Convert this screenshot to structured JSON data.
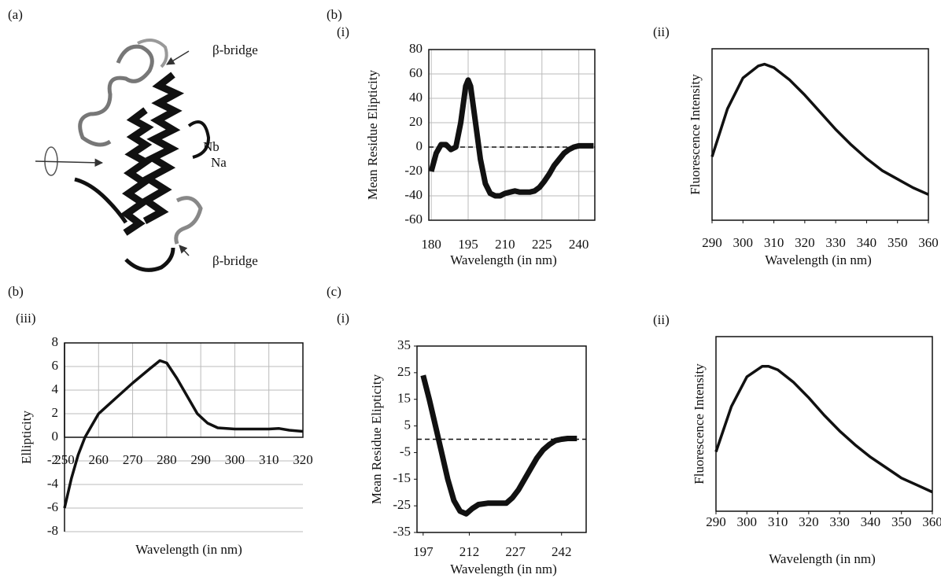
{
  "labels": [
    "(a)",
    "(b)",
    "(i)",
    "(ii)",
    "(b)",
    "(iii)",
    "(c)",
    "(i)",
    "(ii)"
  ],
  "structure": {
    "labels": [
      "β-bridge",
      "Nb",
      "Na",
      "β-bridge"
    ]
  },
  "chart_data": [
    {
      "type": "line",
      "xlabel": "Wavelength (in nm)",
      "ylabel": "Mean Residue Elipticity",
      "x": [
        180,
        182,
        184,
        186,
        188,
        190,
        192,
        194,
        195,
        196,
        198,
        200,
        202,
        204,
        206,
        208,
        210,
        212,
        214,
        216,
        218,
        220,
        222,
        224,
        226,
        228,
        230,
        232,
        234,
        236,
        238,
        240,
        242,
        244,
        246
      ],
      "values": [
        -20,
        -5,
        2,
        2,
        -2,
        0,
        20,
        50,
        55,
        50,
        20,
        -10,
        -30,
        -38,
        -40,
        -40,
        -38,
        -37,
        -36,
        -37,
        -37,
        -37,
        -36,
        -33,
        -28,
        -22,
        -15,
        -10,
        -5,
        -2,
        0,
        1,
        1,
        1,
        1
      ],
      "xlim": [
        179,
        246.5
      ],
      "ylim": [
        -60,
        80
      ],
      "xticks": [
        180,
        195,
        210,
        225,
        240
      ],
      "yticks": [
        -60,
        -40,
        -20,
        0,
        20,
        40,
        60,
        80
      ],
      "grid": true,
      "reference_line": 0,
      "color": "#111",
      "marker": "square"
    },
    {
      "type": "line",
      "xlabel": "Wavelength (in nm)",
      "ylabel": "Fluorescence Intensity",
      "x": [
        290,
        295,
        300,
        305,
        307,
        310,
        315,
        320,
        325,
        330,
        335,
        340,
        345,
        350,
        355,
        360
      ],
      "values": [
        37,
        65,
        83,
        90,
        91,
        89,
        82,
        73,
        63,
        53,
        44,
        36,
        29,
        24,
        19,
        15
      ],
      "xlim": [
        290,
        360
      ],
      "ylim": [
        0,
        100
      ],
      "xticks": [
        290,
        300,
        310,
        320,
        330,
        340,
        350,
        360
      ],
      "grid": false,
      "color": "#111",
      "marker": "none"
    },
    {
      "type": "line",
      "xlabel": "Wavelength (in nm)",
      "ylabel": "Ellipticity",
      "x": [
        250,
        252,
        254,
        256,
        258,
        260,
        265,
        270,
        275,
        278,
        280,
        283,
        286,
        289,
        292,
        295,
        300,
        305,
        310,
        313,
        316,
        320
      ],
      "values": [
        -6,
        -3.5,
        -1.5,
        0,
        1,
        2,
        3.3,
        4.6,
        5.8,
        6.5,
        6.3,
        5,
        3.5,
        2,
        1.2,
        0.8,
        0.7,
        0.7,
        0.7,
        0.75,
        0.6,
        0.5
      ],
      "xlim": [
        250,
        320
      ],
      "ylim": [
        -8,
        8
      ],
      "xticks": [
        250,
        260,
        270,
        280,
        290,
        300,
        310,
        320
      ],
      "yticks": [
        -8,
        -6,
        -4,
        -2,
        0,
        2,
        4,
        6,
        8
      ],
      "grid": true,
      "xaxis_at_zero": true,
      "color": "#111",
      "marker": "none"
    },
    {
      "type": "line",
      "xlabel": "Wavelength (in nm)",
      "ylabel": "Mean Residue Elipticity",
      "x": [
        197,
        199,
        201,
        203,
        205,
        207,
        209,
        211,
        213,
        215,
        218,
        221,
        224,
        226,
        228,
        230,
        232,
        234,
        236,
        238,
        240,
        242,
        244,
        247
      ],
      "values": [
        24,
        15,
        5,
        -5,
        -15,
        -23,
        -27,
        -28,
        -26,
        -24.5,
        -24,
        -24,
        -24,
        -22,
        -19,
        -15,
        -11,
        -7,
        -4,
        -2,
        -0.5,
        0,
        0.3,
        0.3
      ],
      "xlim": [
        195,
        250
      ],
      "ylim": [
        -35,
        35
      ],
      "xticks": [
        197,
        212,
        227,
        242
      ],
      "yticks": [
        -35,
        -25,
        -15,
        -5,
        5,
        15,
        25,
        35
      ],
      "grid": false,
      "reference_line": 0,
      "color": "#111",
      "marker": "square"
    },
    {
      "type": "line",
      "xlabel": "Wavelength (in nm)",
      "ylabel": "Fluorescence Intensity",
      "x": [
        290,
        295,
        300,
        305,
        307,
        310,
        315,
        320,
        325,
        330,
        335,
        340,
        345,
        350,
        355,
        360
      ],
      "values": [
        34,
        60,
        77,
        83,
        83,
        81,
        74,
        65,
        55,
        46,
        38,
        31,
        25,
        19,
        15,
        11
      ],
      "xlim": [
        290,
        360
      ],
      "ylim": [
        0,
        100
      ],
      "xticks": [
        290,
        300,
        310,
        320,
        330,
        340,
        350,
        360
      ],
      "grid": false,
      "color": "#111",
      "marker": "none"
    }
  ]
}
